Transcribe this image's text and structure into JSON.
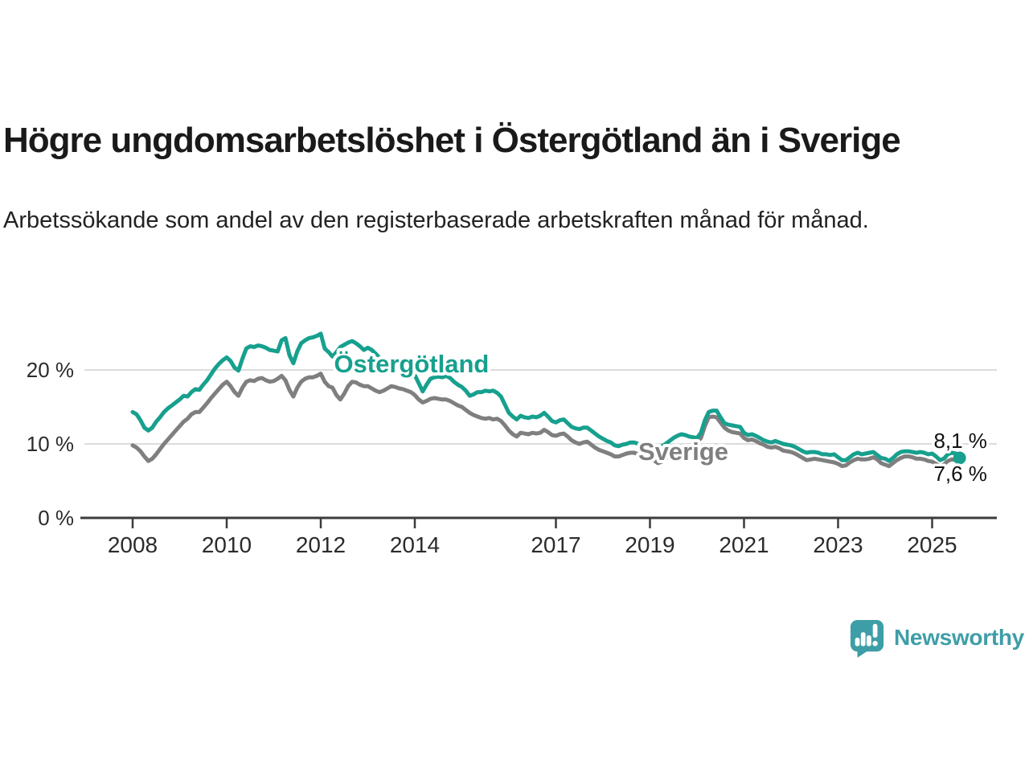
{
  "header": {
    "title": "Högre ungdomsarbetslöshet i Östergötland än i Sverige",
    "subtitle": "Arbetssökande som andel av den registerbaserade arbetskraften månad för månad."
  },
  "chart_data": {
    "type": "line",
    "title": "Högre ungdomsarbetslöshet i Östergötland än i Sverige",
    "subtitle": "Arbetssökande som andel av den registerbaserade arbetskraften månad för månad.",
    "xlabel": "",
    "ylabel": "",
    "x_start": 2008,
    "points_per_year": 12,
    "x_ticks": [
      2008,
      2010,
      2012,
      2014,
      2017,
      2019,
      2021,
      2023,
      2025
    ],
    "y_ticks": [
      {
        "value": 0,
        "label": "0 %"
      },
      {
        "value": 10,
        "label": "10 %"
      },
      {
        "value": 20,
        "label": "20 %"
      }
    ],
    "ylim": [
      0,
      26.5
    ],
    "grid": "horizontal",
    "legend_position": "inline-labels",
    "series": [
      {
        "name": "Sverige",
        "color": "#7F7F7F",
        "end_dot": false,
        "values": [
          9.8,
          9.5,
          9.0,
          8.3,
          7.7,
          8.0,
          8.6,
          9.3,
          10.0,
          10.6,
          11.2,
          11.8,
          12.4,
          13.0,
          13.4,
          14.0,
          14.3,
          14.3,
          14.9,
          15.5,
          16.2,
          16.8,
          17.4,
          18.0,
          18.4,
          17.8,
          17.0,
          16.5,
          17.6,
          18.4,
          18.6,
          18.5,
          18.8,
          18.9,
          18.6,
          18.4,
          18.5,
          18.8,
          19.2,
          18.6,
          17.3,
          16.4,
          17.6,
          18.4,
          18.8,
          19.0,
          19.0,
          19.2,
          19.5,
          18.4,
          17.8,
          17.6,
          16.6,
          16.0,
          16.8,
          17.8,
          18.4,
          18.3,
          18.0,
          17.8,
          17.8,
          17.5,
          17.2,
          17.0,
          17.2,
          17.5,
          17.8,
          17.7,
          17.5,
          17.4,
          17.2,
          17.0,
          16.6,
          16.0,
          15.6,
          15.8,
          16.1,
          16.2,
          16.1,
          16.0,
          16.0,
          15.8,
          15.5,
          15.2,
          15.0,
          14.6,
          14.2,
          13.9,
          13.7,
          13.5,
          13.4,
          13.5,
          13.3,
          13.4,
          13.1,
          12.5,
          11.8,
          11.3,
          11.0,
          11.5,
          11.4,
          11.3,
          11.5,
          11.4,
          11.5,
          11.9,
          11.6,
          11.2,
          11.1,
          11.3,
          11.4,
          11.0,
          10.5,
          10.2,
          10.0,
          10.2,
          10.3,
          9.9,
          9.5,
          9.2,
          9.0,
          8.8,
          8.6,
          8.3,
          8.3,
          8.5,
          8.7,
          8.8,
          8.8,
          8.6,
          8.4,
          8.3,
          8.2,
          7.8,
          7.4,
          7.6,
          8.0,
          8.4,
          8.8,
          9.2,
          9.5,
          9.6,
          9.7,
          9.9,
          10.2,
          10.8,
          12.4,
          13.6,
          13.7,
          13.6,
          12.9,
          12.2,
          11.8,
          11.6,
          11.5,
          11.4,
          10.8,
          10.5,
          10.6,
          10.4,
          10.1,
          9.9,
          9.6,
          9.5,
          9.6,
          9.4,
          9.1,
          9.0,
          8.9,
          8.7,
          8.4,
          8.1,
          7.8,
          7.9,
          8.0,
          7.9,
          7.8,
          7.7,
          7.6,
          7.5,
          7.3,
          7.0,
          7.1,
          7.5,
          7.8,
          8.0,
          7.9,
          7.9,
          8.0,
          8.2,
          7.9,
          7.4,
          7.2,
          7.0,
          7.4,
          7.8,
          8.1,
          8.3,
          8.3,
          8.2,
          8.0,
          8.0,
          7.9,
          7.7,
          7.6,
          7.3,
          7.0,
          7.2,
          7.7,
          7.9,
          7.8,
          7.6
        ]
      },
      {
        "name": "Östergötland",
        "color": "#17A08E",
        "end_dot": true,
        "values": [
          14.3,
          14.0,
          13.2,
          12.2,
          11.8,
          12.2,
          13.0,
          13.6,
          14.3,
          14.8,
          15.2,
          15.6,
          16.0,
          16.5,
          16.4,
          17.0,
          17.4,
          17.3,
          18.0,
          18.6,
          19.4,
          20.2,
          20.8,
          21.3,
          21.7,
          21.2,
          20.3,
          19.9,
          21.5,
          22.9,
          23.2,
          23.1,
          23.3,
          23.2,
          23.0,
          22.7,
          22.6,
          22.5,
          24.0,
          24.3,
          22.0,
          20.9,
          22.5,
          23.6,
          24.0,
          24.3,
          24.4,
          24.6,
          24.9,
          22.9,
          22.4,
          21.8,
          22.4,
          23.1,
          23.4,
          23.7,
          23.9,
          23.6,
          23.2,
          22.7,
          23.0,
          22.7,
          22.2,
          21.6,
          21.0,
          20.6,
          20.5,
          20.7,
          20.8,
          20.4,
          20.0,
          19.6,
          19.3,
          18.2,
          17.1,
          18.0,
          18.8,
          19.0,
          19.1,
          19.0,
          19.2,
          18.9,
          18.4,
          18.0,
          17.7,
          17.2,
          16.5,
          16.7,
          17.0,
          17.0,
          17.2,
          17.1,
          17.2,
          16.9,
          16.4,
          15.3,
          14.2,
          13.7,
          13.3,
          13.8,
          13.6,
          13.5,
          13.7,
          13.6,
          13.8,
          14.2,
          13.7,
          13.1,
          12.9,
          13.2,
          13.3,
          12.8,
          12.3,
          12.1,
          12.0,
          12.2,
          12.2,
          11.8,
          11.4,
          11.0,
          10.7,
          10.4,
          10.2,
          9.8,
          9.7,
          9.9,
          10.0,
          10.2,
          10.2,
          10.0,
          9.9,
          9.8,
          9.7,
          9.6,
          9.5,
          9.7,
          10.0,
          10.4,
          10.8,
          11.1,
          11.3,
          11.2,
          11.0,
          10.9,
          10.8,
          11.5,
          13.2,
          14.3,
          14.5,
          14.5,
          13.6,
          12.8,
          12.6,
          12.5,
          12.4,
          12.3,
          11.5,
          11.2,
          11.3,
          11.1,
          10.8,
          10.5,
          10.3,
          10.2,
          10.4,
          10.2,
          10.0,
          9.9,
          9.8,
          9.6,
          9.3,
          9.0,
          8.8,
          8.9,
          8.9,
          8.8,
          8.6,
          8.6,
          8.5,
          8.6,
          8.2,
          7.8,
          7.8,
          8.2,
          8.6,
          8.8,
          8.6,
          8.7,
          8.8,
          8.9,
          8.5,
          8.1,
          8.0,
          7.7,
          8.1,
          8.6,
          8.9,
          9.0,
          9.0,
          8.9,
          8.8,
          8.9,
          8.8,
          8.6,
          8.7,
          8.3,
          7.8,
          8.0,
          8.6,
          8.8,
          8.7,
          8.1
        ]
      }
    ],
    "series_labels": [
      {
        "text": "Östergötland",
        "color": "#17A08E",
        "x": 2013.93,
        "y": 19.7,
        "anchor": "middle"
      },
      {
        "text": "Sverige",
        "color": "#7F7F7F",
        "x": 2019.71,
        "y": 7.8,
        "anchor": "middle"
      }
    ],
    "value_labels": [
      {
        "text": "8,1 %",
        "x": 2026.17,
        "y": 9.46,
        "anchor": "end"
      },
      {
        "text": "7,6 %",
        "x": 2026.17,
        "y": 5.0,
        "anchor": "end"
      }
    ]
  },
  "footer": {
    "brand": "Newsworthy",
    "brand_color": "#3E9EA7",
    "logo_icon": "bar-chart-speech-bubble-icon"
  },
  "colors": {
    "accent_teal": "#17A08E",
    "neutral_gray": "#7F7F7F",
    "gridline": "#DBDBDB",
    "axis": "#3C3C3C",
    "logo_teal": "#3E9EA7"
  }
}
